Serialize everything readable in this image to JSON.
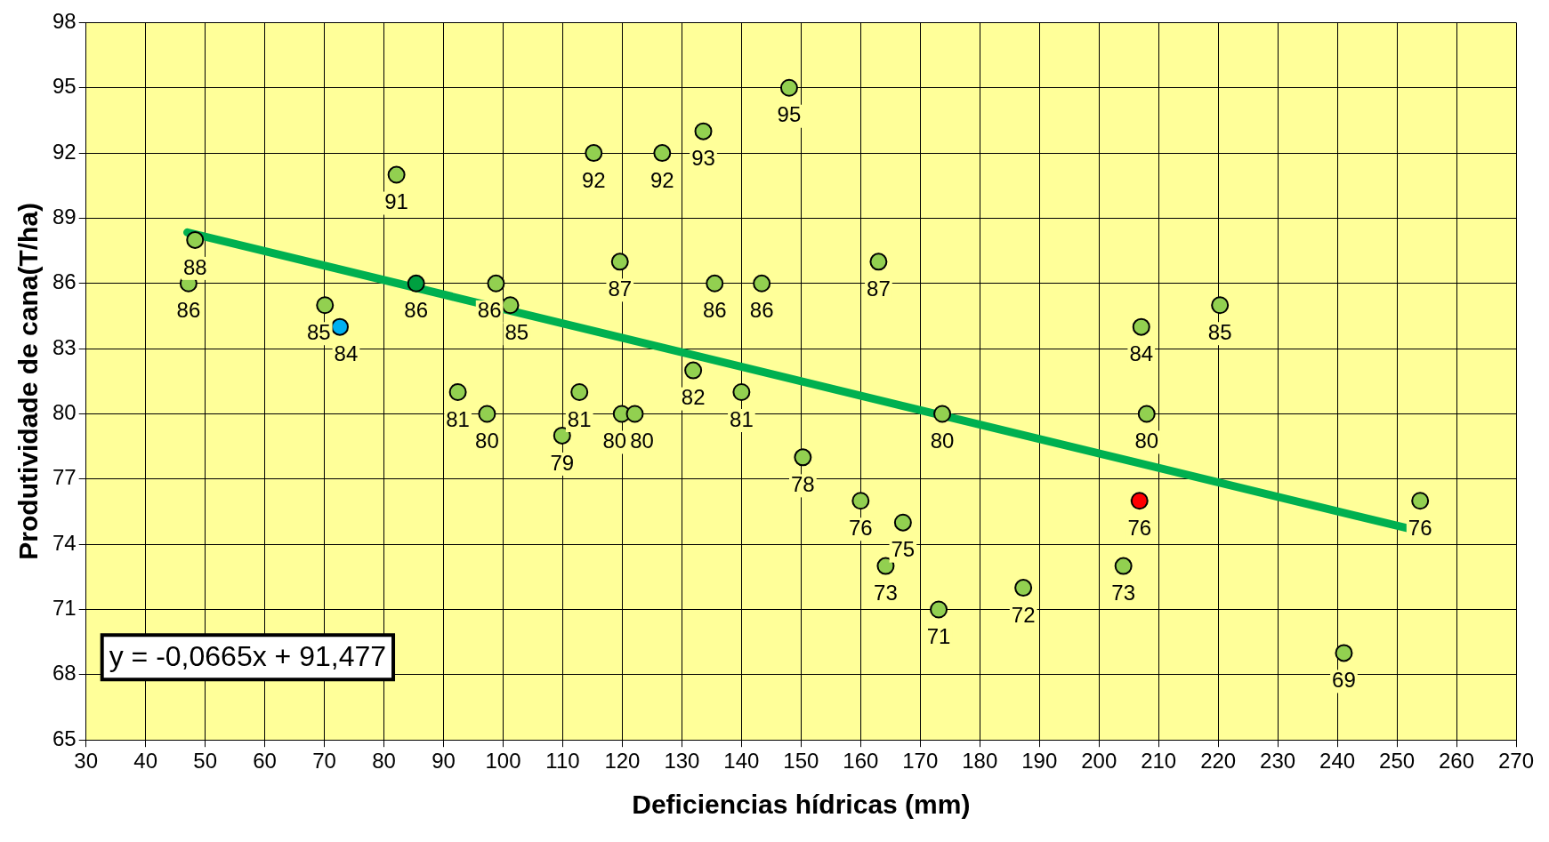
{
  "chart_data": {
    "type": "scatter",
    "xlabel": "Deficiencias hídricas (mm)",
    "ylabel": "Produtividade de cana(T/ha)",
    "xlim": [
      30,
      270
    ],
    "xticks": [
      30,
      40,
      50,
      60,
      70,
      80,
      90,
      100,
      110,
      120,
      130,
      140,
      150,
      160,
      170,
      180,
      190,
      200,
      210,
      220,
      230,
      240,
      250,
      260,
      270
    ],
    "ylim": [
      65,
      98
    ],
    "yticks": [
      65,
      68,
      71,
      74,
      77,
      80,
      83,
      86,
      89,
      92,
      95,
      98
    ],
    "grid": true,
    "legend": false,
    "annotations": [
      "y = -0,0665x + 91,477"
    ],
    "series": [
      {
        "type": "scatter",
        "color": "#92d050",
        "marker": "circle",
        "value_labels": [
          "86",
          "88",
          "85",
          "84",
          "91",
          "86",
          "81",
          "80",
          "86",
          "85",
          "79",
          "81",
          "92",
          "87",
          "80",
          "80",
          "92",
          "82",
          "93",
          "86",
          "81",
          "86",
          "95",
          "78",
          "76",
          "87",
          "73",
          "75",
          "71",
          "80",
          "72",
          "73",
          "84",
          "76",
          "80",
          "85",
          "69",
          "76"
        ],
        "x": [
          47.2,
          48.3,
          70.1,
          72.6,
          82.1,
          85.4,
          92.4,
          97.3,
          98.8,
          101.2,
          109.9,
          112.8,
          115.2,
          119.6,
          119.9,
          122.1,
          126.7,
          131.9,
          133.6,
          135.5,
          140.0,
          143.4,
          148.0,
          150.3,
          160.0,
          163.0,
          164.2,
          167.1,
          173.1,
          173.7,
          187.3,
          204.1,
          207.1,
          206.8,
          208.0,
          220.3,
          241.1,
          253.9
        ],
        "values": [
          86,
          88,
          85,
          84,
          91,
          86,
          81,
          80,
          86,
          85,
          79,
          81,
          92,
          87,
          80,
          80,
          92,
          82,
          93,
          86,
          81,
          86,
          95,
          78,
          76,
          87,
          73,
          75,
          71,
          80,
          72,
          73,
          84,
          76,
          80,
          85,
          69,
          76
        ],
        "colors": [
          null,
          null,
          null,
          "#00b0f0",
          null,
          "#00a040",
          null,
          null,
          null,
          null,
          null,
          null,
          null,
          null,
          null,
          null,
          null,
          null,
          null,
          null,
          null,
          null,
          null,
          null,
          null,
          null,
          null,
          null,
          null,
          null,
          null,
          null,
          null,
          "#ff0000",
          null,
          null,
          null,
          null
        ]
      },
      {
        "type": "line",
        "color": "#00b050",
        "x": [
          47,
          254
        ],
        "values": [
          88.35,
          74.59
        ]
      }
    ]
  }
}
